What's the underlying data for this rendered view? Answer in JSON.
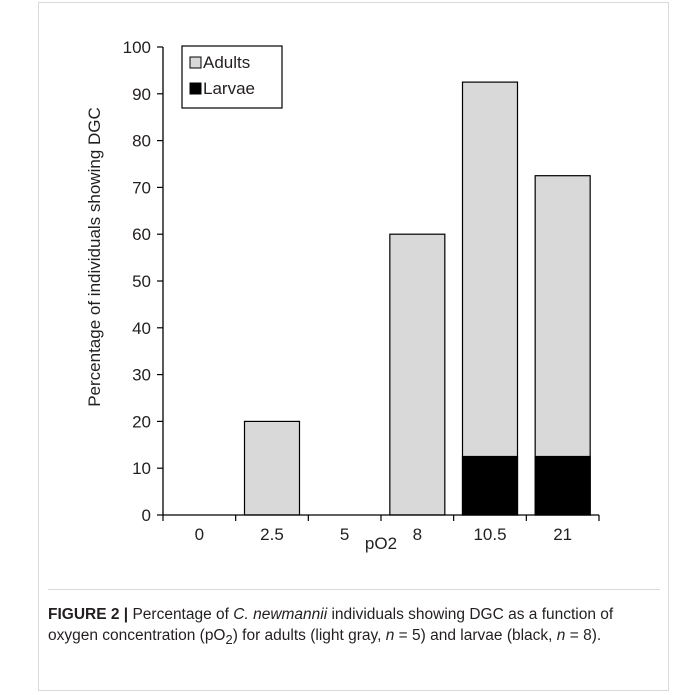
{
  "chart_data": {
    "type": "bar",
    "stacked": true,
    "categories": [
      "0",
      "2.5",
      "5",
      "8",
      "10.5",
      "21"
    ],
    "series": [
      {
        "name": "Adults",
        "values": [
          0,
          20,
          0,
          60,
          92.5,
          72.5
        ],
        "color": "#d9d9d9"
      },
      {
        "name": "Larvae",
        "values": [
          0,
          0,
          0,
          0,
          12.5,
          12.5
        ],
        "color": "#000000"
      }
    ],
    "xlabel": "pO2",
    "ylabel": "Percentage of individuals showing DGC",
    "ylim": [
      0,
      100
    ],
    "yticks": [
      "0",
      "10",
      "20",
      "30",
      "40",
      "50",
      "60",
      "70",
      "80",
      "90",
      "100"
    ],
    "grid": false,
    "legend_position": "top-left"
  },
  "caption": {
    "label": "FIGURE 2 |",
    "parts": [
      {
        "text": " Percentage of ",
        "style": "normal"
      },
      {
        "text": "C. newmannii",
        "style": "italic"
      },
      {
        "text": " individuals showing DGC as a function of oxygen concentration (pO",
        "style": "normal"
      },
      {
        "text": "2",
        "style": "sub"
      },
      {
        "text": ") for adults (light gray, ",
        "style": "normal"
      },
      {
        "text": "n",
        "style": "italic"
      },
      {
        "text": " = 5) and larvae (black, ",
        "style": "normal"
      },
      {
        "text": "n",
        "style": "italic"
      },
      {
        "text": " = 8).",
        "style": "normal"
      }
    ]
  }
}
